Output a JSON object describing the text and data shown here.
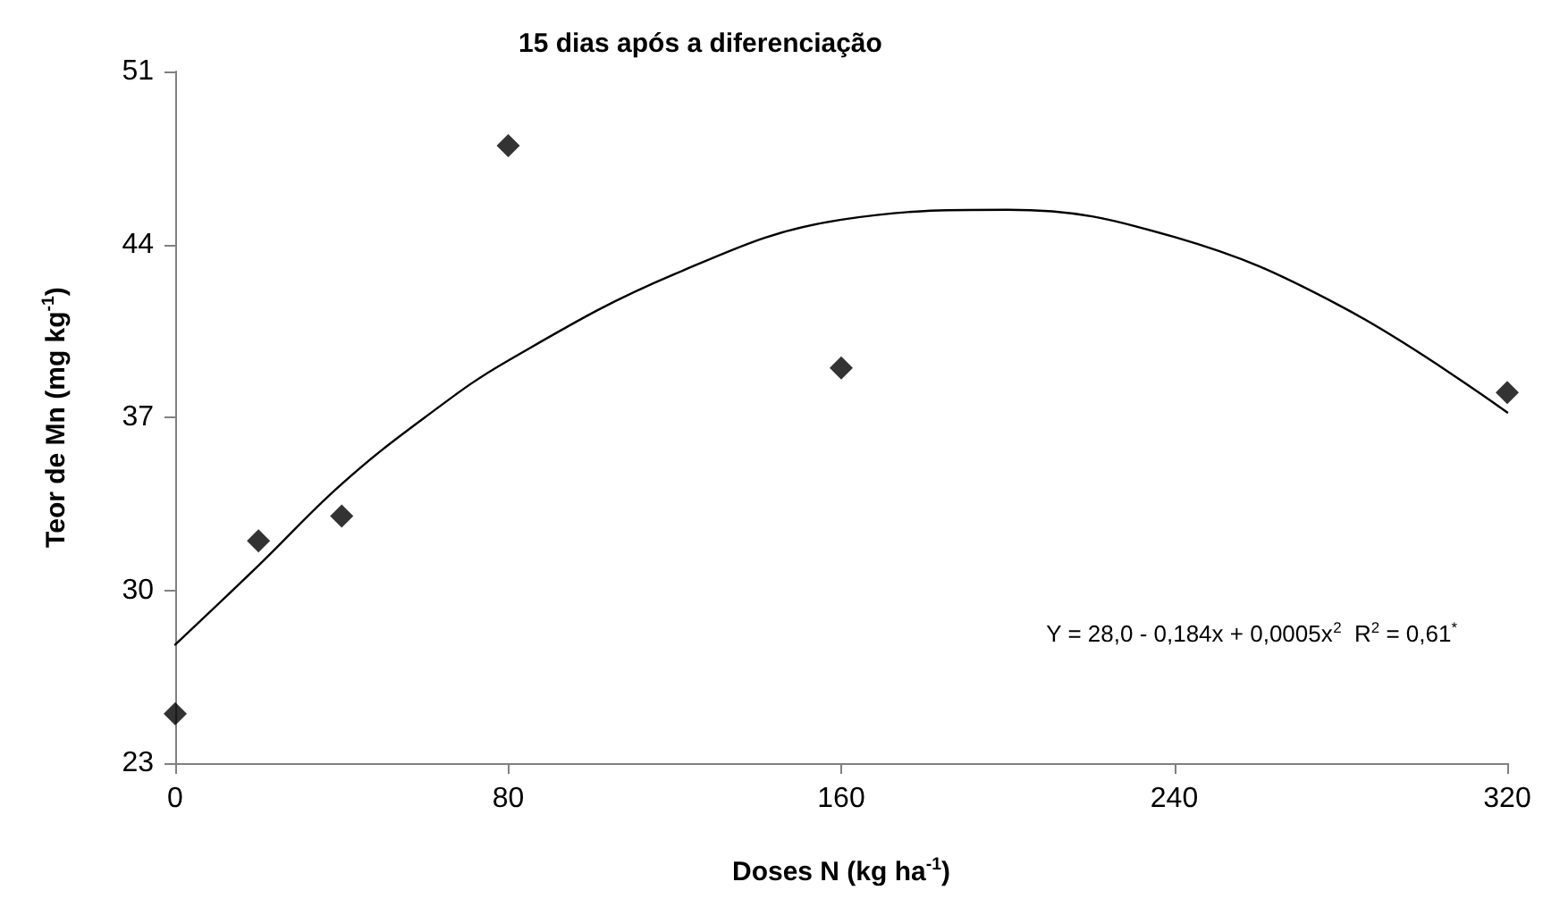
{
  "chart_data": {
    "type": "scatter",
    "title": "15 dias após a diferenciação",
    "xlabel": "Doses N (kg ha$^{-1}$)",
    "ylabel": "Teor de Mn (mg kg$^{-1}$)",
    "annotations": [
      "Y = 28,0 - 0,184x + 0,0005x$^{2}$  R$^{2}$ = 0,61$^{*}$"
    ],
    "series": [
      {
        "color": "#000000",
        "x": [
          0,
          20,
          40,
          80,
          160,
          320
        ],
        "values": [
          25,
          32,
          33,
          48,
          39,
          38
        ],
        "marker": "diamond"
      },
      {
        "type": "line",
        "color": "#000000",
        "x": [
          0,
          20,
          40,
          60,
          80,
          120,
          160,
          200,
          240,
          280,
          320
        ],
        "values": [
          27.8,
          31.0,
          34.3,
          37.0,
          39.3,
          42.8,
          45.0,
          45.4,
          44.3,
          41.5,
          37.2
        ],
        "marker": "none",
        "line_style": "solid"
      }
    ],
    "xlim": [
      0,
      320
    ],
    "xticks": [
      0,
      80,
      160,
      240,
      320
    ],
    "ylim": [
      23,
      51
    ],
    "yticks": [
      23,
      30,
      37,
      44,
      51
    ],
    "grid": false
  }
}
